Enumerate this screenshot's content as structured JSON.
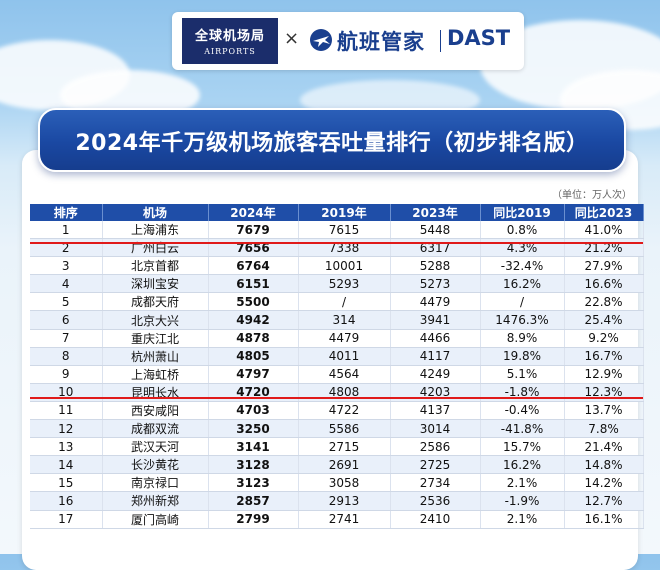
{
  "header": {
    "logo_left_cn": "全球机场局",
    "logo_left_en": "AIRPORTS",
    "times_symbol": "×",
    "logo_right_cn": "航班管家",
    "logo_right_en": "DAST",
    "title": "2024年千万级机场旅客吞吐量排行（初步排名版）",
    "unit": "（单位：万人次）"
  },
  "colors": {
    "header_bg": "#1f4ea8",
    "banner_bg": "#1a48a2",
    "highlight_line": "#e01a1a",
    "alt_row": "#e9f0fa"
  },
  "table": {
    "columns": [
      "排序",
      "机场",
      "2024年",
      "2019年",
      "2023年",
      "同比2019",
      "同比2023"
    ],
    "rows": [
      [
        "1",
        "上海浦东",
        "7679",
        "7615",
        "5448",
        "0.8%",
        "41.0%"
      ],
      [
        "2",
        "广州白云",
        "7656",
        "7338",
        "6317",
        "4.3%",
        "21.2%"
      ],
      [
        "3",
        "北京首都",
        "6764",
        "10001",
        "5288",
        "-32.4%",
        "27.9%"
      ],
      [
        "4",
        "深圳宝安",
        "6151",
        "5293",
        "5273",
        "16.2%",
        "16.6%"
      ],
      [
        "5",
        "成都天府",
        "5500",
        "/",
        "4479",
        "/",
        "22.8%"
      ],
      [
        "6",
        "北京大兴",
        "4942",
        "314",
        "3941",
        "1476.3%",
        "25.4%"
      ],
      [
        "7",
        "重庆江北",
        "4878",
        "4479",
        "4466",
        "8.9%",
        "9.2%"
      ],
      [
        "8",
        "杭州萧山",
        "4805",
        "4011",
        "4117",
        "19.8%",
        "16.7%"
      ],
      [
        "9",
        "上海虹桥",
        "4797",
        "4564",
        "4249",
        "5.1%",
        "12.9%"
      ],
      [
        "10",
        "昆明长水",
        "4720",
        "4808",
        "4203",
        "-1.8%",
        "12.3%"
      ],
      [
        "11",
        "西安咸阳",
        "4703",
        "4722",
        "4137",
        "-0.4%",
        "13.7%"
      ],
      [
        "12",
        "成都双流",
        "3250",
        "5586",
        "3014",
        "-41.8%",
        "7.8%"
      ],
      [
        "13",
        "武汉天河",
        "3141",
        "2715",
        "2586",
        "15.7%",
        "21.4%"
      ],
      [
        "14",
        "长沙黄花",
        "3128",
        "2691",
        "2725",
        "16.2%",
        "14.8%"
      ],
      [
        "15",
        "南京禄口",
        "3123",
        "3058",
        "2734",
        "2.1%",
        "14.2%"
      ],
      [
        "16",
        "郑州新郑",
        "2857",
        "2913",
        "2536",
        "-1.9%",
        "12.7%"
      ],
      [
        "17",
        "厦门高崎",
        "2799",
        "2741",
        "2410",
        "2.1%",
        "16.1%"
      ]
    ]
  }
}
